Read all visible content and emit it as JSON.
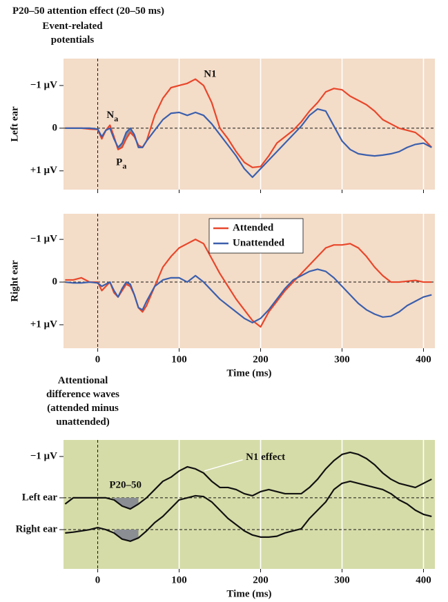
{
  "chart_data": [
    {
      "type": "line",
      "suptitle": "P20–50 attention effect (20–50 ms)",
      "title": "Event-related potentials",
      "ylabel": "Left ear",
      "annotations": [
        "N1",
        {
          "text": "N",
          "sub": "a"
        },
        {
          "text": "P",
          "sub": "a"
        }
      ],
      "background": "#f3dcc8",
      "grid": true,
      "x_zero_line": true,
      "y_zero_line": true,
      "y_inverted": true,
      "xtick_labels": false,
      "shade": {
        "x": [
          20,
          50
        ],
        "color": "#8b8e93"
      },
      "xlim": [
        -42,
        414
      ],
      "xticks": [
        0,
        100,
        200,
        300,
        400
      ],
      "ylim": [
        -1.63,
        1.44
      ],
      "yticks": [
        {
          "value": -1,
          "label": "−1 µV"
        },
        0,
        {
          "value": 1,
          "label": "+1 µV"
        }
      ],
      "x": [
        -40,
        -30,
        -20,
        -10,
        0,
        5,
        10,
        15,
        20,
        25,
        30,
        35,
        40,
        45,
        50,
        55,
        60,
        70,
        80,
        90,
        100,
        110,
        120,
        130,
        140,
        150,
        160,
        170,
        180,
        190,
        200,
        210,
        220,
        230,
        240,
        250,
        260,
        270,
        280,
        290,
        300,
        310,
        320,
        330,
        340,
        350,
        360,
        370,
        380,
        390,
        400,
        410
      ],
      "series": [
        {
          "name": "Attended",
          "color": "#e8462a",
          "values": [
            0,
            0,
            0,
            0.02,
            0.03,
            0.25,
            0.05,
            -0.07,
            0.2,
            0.5,
            0.45,
            0.25,
            0.1,
            0.2,
            0.4,
            0.45,
            0.3,
            -0.3,
            -0.7,
            -0.95,
            -1.0,
            -1.05,
            -1.15,
            -1.0,
            -0.6,
            0,
            0.25,
            0.55,
            0.8,
            0.92,
            0.9,
            0.65,
            0.35,
            0.2,
            0.05,
            -0.15,
            -0.4,
            -0.6,
            -0.85,
            -0.93,
            -0.9,
            -0.75,
            -0.65,
            -0.55,
            -0.4,
            -0.2,
            -0.1,
            0,
            0.05,
            0.1,
            0.25,
            0.45
          ]
        },
        {
          "name": "Unattended",
          "color": "#3b5fad",
          "values": [
            0,
            0,
            0,
            0,
            0.02,
            0.2,
            0.05,
            0,
            0.25,
            0.45,
            0.35,
            0.1,
            0,
            0.15,
            0.45,
            0.45,
            0.3,
            0.05,
            -0.2,
            -0.35,
            -0.37,
            -0.3,
            -0.37,
            -0.3,
            -0.1,
            0.15,
            0.4,
            0.65,
            0.95,
            1.15,
            0.95,
            0.75,
            0.55,
            0.35,
            0.15,
            -0.05,
            -0.3,
            -0.45,
            -0.4,
            -0.05,
            0.3,
            0.5,
            0.6,
            0.63,
            0.65,
            0.63,
            0.6,
            0.55,
            0.45,
            0.38,
            0.35,
            0.45
          ]
        }
      ]
    },
    {
      "type": "line",
      "ylabel": "Right ear",
      "xlabel": "Time (ms)",
      "legend": "upper center",
      "background": "#f3dcc8",
      "grid": true,
      "x_zero_line": true,
      "y_zero_line": true,
      "y_inverted": true,
      "xtick_labels": true,
      "shade": {
        "x": [
          20,
          50
        ],
        "color": "#8b8e93"
      },
      "xlim": [
        -42,
        414
      ],
      "xticks": [
        0,
        100,
        200,
        300,
        400
      ],
      "ylim": [
        -1.6,
        1.55
      ],
      "yticks": [
        {
          "value": -1,
          "label": "−1 µV"
        },
        0,
        {
          "value": 1,
          "label": "+1 µV"
        }
      ],
      "x": [
        -40,
        -30,
        -20,
        -10,
        0,
        5,
        10,
        15,
        20,
        25,
        30,
        35,
        40,
        45,
        50,
        55,
        60,
        70,
        80,
        90,
        100,
        110,
        120,
        130,
        140,
        150,
        160,
        170,
        180,
        190,
        200,
        210,
        220,
        230,
        240,
        250,
        260,
        270,
        280,
        290,
        300,
        310,
        320,
        330,
        340,
        350,
        360,
        370,
        380,
        390,
        400,
        410
      ],
      "series": [
        {
          "name": "Attended",
          "color": "#e8462a",
          "values": [
            -0.05,
            -0.05,
            -0.1,
            0,
            0,
            0.2,
            0.1,
            0,
            0.25,
            0.35,
            0.2,
            0.05,
            0.1,
            0.3,
            0.6,
            0.7,
            0.55,
            0.1,
            -0.35,
            -0.6,
            -0.8,
            -0.9,
            -1.0,
            -0.9,
            -0.55,
            -0.2,
            0.1,
            0.4,
            0.65,
            0.9,
            1.05,
            0.7,
            0.45,
            0.2,
            0,
            -0.2,
            -0.4,
            -0.6,
            -0.8,
            -0.87,
            -0.87,
            -0.9,
            -0.8,
            -0.6,
            -0.35,
            -0.15,
            0,
            0,
            -0.02,
            -0.04,
            0,
            0
          ]
        },
        {
          "name": "Unattended",
          "color": "#3b5fad",
          "values": [
            0,
            0.02,
            0.02,
            0,
            0.02,
            0.1,
            0.05,
            0,
            0.2,
            0.35,
            0.15,
            0,
            0.05,
            0.3,
            0.6,
            0.65,
            0.45,
            0.1,
            -0.05,
            -0.1,
            -0.1,
            0,
            -0.15,
            0,
            0.2,
            0.4,
            0.55,
            0.7,
            0.85,
            0.95,
            0.85,
            0.65,
            0.4,
            0.15,
            -0.05,
            -0.15,
            -0.25,
            -0.3,
            -0.25,
            -0.1,
            0.1,
            0.3,
            0.5,
            0.65,
            0.75,
            0.82,
            0.8,
            0.7,
            0.55,
            0.45,
            0.35,
            0.3
          ]
        }
      ]
    },
    {
      "type": "line",
      "title": "Attentional difference waves (attended minus unattended)",
      "xlabel": "Time (ms)",
      "annotations": [
        "P20–50",
        "N1 effect"
      ],
      "background": "#d6dca8",
      "grid": true,
      "x_zero_line": true,
      "y_inverted": true,
      "xtick_labels": true,
      "shade": {
        "x": [
          20,
          50
        ],
        "color": "#8b8e93"
      },
      "xlim": [
        -42,
        414
      ],
      "xticks": [
        0,
        100,
        200,
        300,
        400
      ],
      "ylim": [
        -1.4,
        1.72
      ],
      "yticks": [
        {
          "value": -1,
          "label": "−1 µV"
        },
        {
          "value": 0,
          "label": "Left ear"
        },
        {
          "value": 0.77,
          "label": "Right ear"
        }
      ],
      "x": [
        -40,
        -30,
        -20,
        -10,
        0,
        10,
        20,
        30,
        40,
        50,
        60,
        70,
        80,
        90,
        100,
        110,
        120,
        130,
        140,
        150,
        160,
        170,
        180,
        190,
        200,
        210,
        220,
        230,
        240,
        250,
        260,
        270,
        280,
        290,
        300,
        310,
        320,
        330,
        340,
        350,
        360,
        370,
        380,
        390,
        400,
        410
      ],
      "series": [
        {
          "color": "#111111",
          "baseline": 0,
          "values": [
            0.15,
            0,
            0,
            0,
            0,
            0,
            0.05,
            0.2,
            0.27,
            0.15,
            0,
            -0.2,
            -0.4,
            -0.5,
            -0.65,
            -0.75,
            -0.7,
            -0.6,
            -0.4,
            -0.25,
            -0.25,
            -0.2,
            -0.1,
            -0.05,
            -0.15,
            -0.2,
            -0.15,
            -0.1,
            -0.1,
            -0.1,
            -0.25,
            -0.45,
            -0.7,
            -0.9,
            -1.05,
            -1.1,
            -1.05,
            -0.95,
            -0.8,
            -0.6,
            -0.45,
            -0.35,
            -0.3,
            -0.25,
            -0.35,
            -0.45
          ]
        },
        {
          "color": "#111111",
          "baseline": 0.77,
          "values": [
            0.85,
            0.83,
            0.8,
            0.77,
            0.72,
            0.77,
            0.85,
            1.0,
            1.05,
            0.97,
            0.8,
            0.6,
            0.45,
            0.25,
            0.05,
            0,
            -0.05,
            -0.03,
            0.1,
            0.3,
            0.5,
            0.65,
            0.8,
            0.9,
            0.95,
            0.95,
            0.93,
            0.85,
            0.8,
            0.75,
            0.5,
            0.3,
            0.1,
            -0.2,
            -0.35,
            -0.4,
            -0.35,
            -0.3,
            -0.25,
            -0.2,
            -0.1,
            0.05,
            0.15,
            0.3,
            0.4,
            0.45
          ]
        }
      ]
    }
  ]
}
